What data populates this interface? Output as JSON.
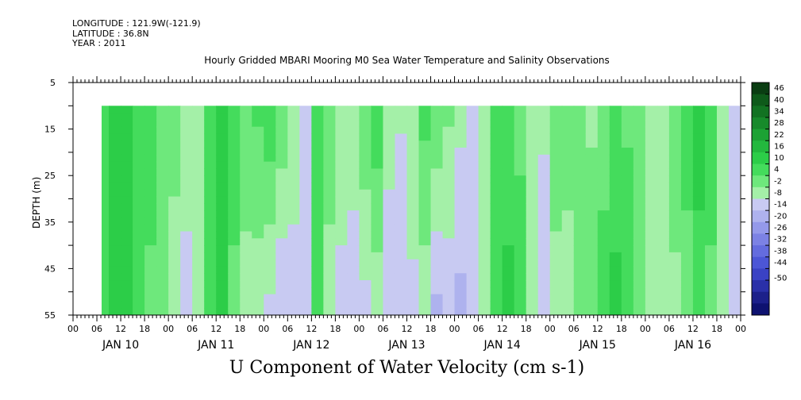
{
  "header": {
    "longitude": "LONGITUDE : 121.9W(-121.9)",
    "latitude": "LATITUDE : 36.8N",
    "year": "YEAR : 2011"
  },
  "chart_data": {
    "type": "heatmap",
    "title": "Hourly Gridded MBARI Mooring M0 Sea Water Temperature and Salinity Observations",
    "subtitle": "U Component of Water Velocity (cm s-1)",
    "ylabel": "DEPTH (m)",
    "xlabel": "",
    "ylim": [
      5,
      55
    ],
    "y_inverted": true,
    "y_ticks": [
      5,
      15,
      25,
      35,
      45,
      55
    ],
    "data_depth_range": [
      10,
      55
    ],
    "x_range_hours": [
      "JAN 10 00",
      "JAN 17 00"
    ],
    "x_tick_hours": [
      "00",
      "06",
      "12",
      "18",
      "00",
      "06",
      "12",
      "18",
      "00",
      "06",
      "12",
      "18",
      "00",
      "06",
      "12",
      "18",
      "00",
      "06",
      "12",
      "18",
      "00",
      "06",
      "12",
      "18",
      "00",
      "06",
      "12",
      "18",
      "00"
    ],
    "day_labels": [
      "JAN 10",
      "JAN 11",
      "JAN 12",
      "JAN 13",
      "JAN 14",
      "JAN 15",
      "JAN 16"
    ],
    "data_start": "JAN 10 06",
    "colorbar": {
      "levels": [
        46,
        40,
        34,
        28,
        22,
        16,
        10,
        4,
        -2,
        -8,
        -14,
        -20,
        -26,
        -32,
        -38,
        -44,
        -50
      ],
      "min": -50,
      "max": 52,
      "positive_colors": [
        "#0a3d12",
        "#0e5a1a",
        "#127222",
        "#178a2b",
        "#1ca234",
        "#23b83e",
        "#2ccd48",
        "#44dc5c",
        "#6ee87c",
        "#a4f0a8"
      ],
      "negative_colors": [
        "#c8caf2",
        "#aeb2ee",
        "#9499ea",
        "#7c82e4",
        "#646cde",
        "#4c56d6",
        "#3a42c4",
        "#2a30a8",
        "#1c208a",
        "#0e1270"
      ]
    },
    "columns_u": [
      {
        "hour": 6,
        "top": 6,
        "bottom": 6
      },
      {
        "hour": 9,
        "top": 12,
        "bottom": 10
      },
      {
        "hour": 12,
        "top": 14,
        "bottom": 10
      },
      {
        "hour": 15,
        "top": 8,
        "bottom": 5
      },
      {
        "hour": 18,
        "top": 6,
        "bottom": 3
      },
      {
        "hour": 21,
        "top": 4,
        "bottom": -2
      },
      {
        "hour": 24,
        "top": 1,
        "bottom": -6
      },
      {
        "hour": 27,
        "top": -5,
        "bottom": -10
      },
      {
        "hour": 30,
        "top": -6,
        "bottom": -5
      },
      {
        "hour": 33,
        "top": 6,
        "bottom": 4
      },
      {
        "hour": 36,
        "top": 12,
        "bottom": 10
      },
      {
        "hour": 39,
        "top": 6,
        "bottom": 3
      },
      {
        "hour": 42,
        "top": 1,
        "bottom": -4
      },
      {
        "hour": 45,
        "top": 5,
        "bottom": -6
      },
      {
        "hour": 48,
        "top": 9,
        "bottom": -10
      },
      {
        "hour": 51,
        "top": 3,
        "bottom": -14
      },
      {
        "hour": 54,
        "top": -3,
        "bottom": -12
      },
      {
        "hour": 57,
        "top": -8,
        "bottom": -8
      },
      {
        "hour": 60,
        "top": 6,
        "bottom": 4
      },
      {
        "hour": 63,
        "top": 3,
        "bottom": -6
      },
      {
        "hour": 66,
        "top": -4,
        "bottom": -10
      },
      {
        "hour": 69,
        "top": -2,
        "bottom": -14
      },
      {
        "hour": 72,
        "top": 3,
        "bottom": -10
      },
      {
        "hour": 75,
        "top": 8,
        "bottom": -6
      },
      {
        "hour": 78,
        "top": -4,
        "bottom": -14
      },
      {
        "hour": 81,
        "top": -7,
        "bottom": -14
      },
      {
        "hour": 84,
        "top": -2,
        "bottom": -10
      },
      {
        "hour": 87,
        "top": 6,
        "bottom": -6
      },
      {
        "hour": 90,
        "top": 4,
        "bottom": -16
      },
      {
        "hour": 93,
        "top": -1,
        "bottom": -12
      },
      {
        "hour": 96,
        "top": -6,
        "bottom": -16
      },
      {
        "hour": 99,
        "top": -8,
        "bottom": -12
      },
      {
        "hour": 102,
        "top": -3,
        "bottom": -4
      },
      {
        "hour": 105,
        "top": 4,
        "bottom": 8
      },
      {
        "hour": 108,
        "top": 6,
        "bottom": 12
      },
      {
        "hour": 111,
        "top": 3,
        "bottom": 6
      },
      {
        "hour": 114,
        "top": -2,
        "bottom": -8
      },
      {
        "hour": 117,
        "top": -6,
        "bottom": -14
      },
      {
        "hour": 120,
        "top": 1,
        "bottom": -4
      },
      {
        "hour": 123,
        "top": 4,
        "bottom": -8
      },
      {
        "hour": 126,
        "top": 2,
        "bottom": -2
      },
      {
        "hour": 129,
        "top": -3,
        "bottom": 2
      },
      {
        "hour": 132,
        "top": 2,
        "bottom": 6
      },
      {
        "hour": 135,
        "top": 5,
        "bottom": 12
      },
      {
        "hour": 138,
        "top": 3,
        "bottom": 8
      },
      {
        "hour": 141,
        "top": 0,
        "bottom": 4
      },
      {
        "hour": 144,
        "top": -4,
        "bottom": -6
      },
      {
        "hour": 147,
        "top": -2,
        "bottom": -8
      },
      {
        "hour": 150,
        "top": 3,
        "bottom": -4
      },
      {
        "hour": 153,
        "top": 6,
        "bottom": 2
      },
      {
        "hour": 156,
        "top": 14,
        "bottom": 6
      },
      {
        "hour": 159,
        "top": 8,
        "bottom": 2
      },
      {
        "hour": 162,
        "top": -3,
        "bottom": -6
      },
      {
        "hour": 165,
        "top": -8,
        "bottom": -10
      }
    ]
  }
}
